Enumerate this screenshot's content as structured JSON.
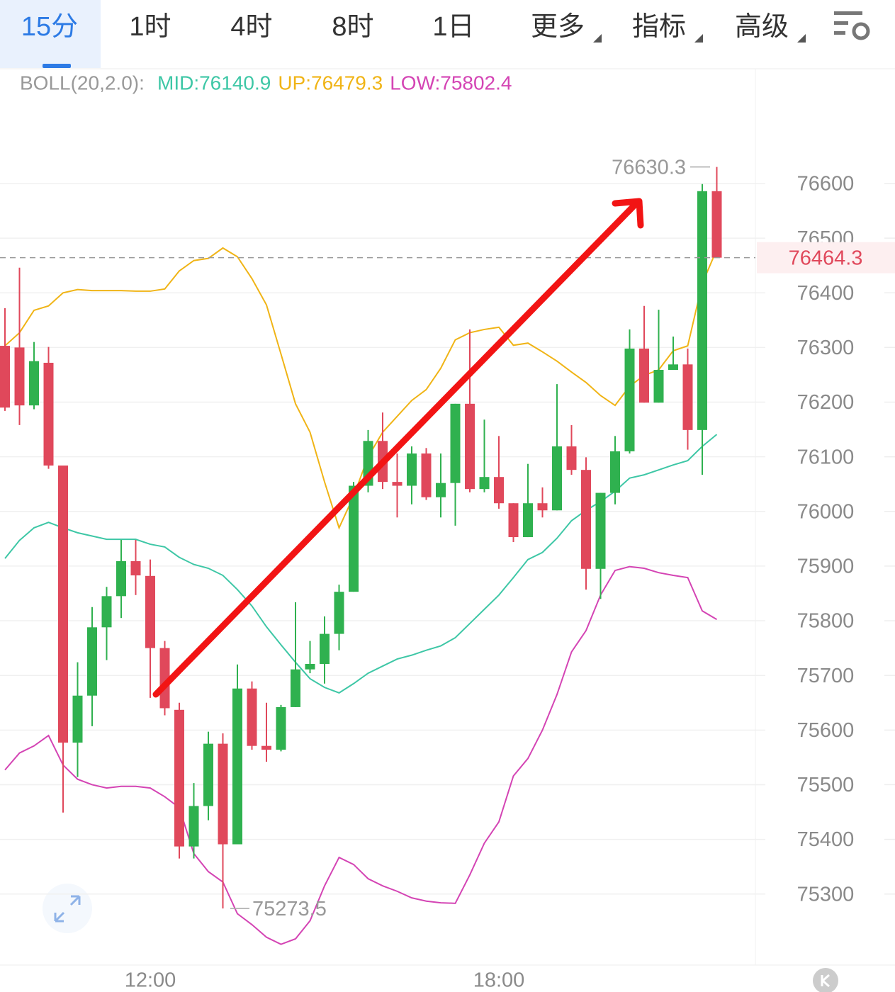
{
  "tabs": [
    "15分",
    "1时",
    "4时",
    "8时",
    "1日",
    "更多",
    "指标",
    "高级"
  ],
  "chart_data": {
    "type": "candlestick",
    "indicator": "BOLL(20,2.0):",
    "categories": [
      null,
      null,
      null,
      null,
      null,
      null,
      null,
      null,
      null,
      null,
      "12:00",
      null,
      null,
      null,
      null,
      null,
      null,
      null,
      null,
      null,
      null,
      null,
      null,
      null,
      null,
      null,
      null,
      null,
      null,
      null,
      null,
      null,
      null,
      null,
      "18:00",
      null,
      null,
      null,
      null,
      null,
      null,
      null,
      null,
      null,
      null,
      null,
      null,
      null,
      null,
      null
    ],
    "open": [
      76303,
      76300,
      76194,
      76272,
      76084,
      75577,
      75663,
      75788,
      75845,
      75909,
      75882,
      75750,
      75637,
      75387,
      75461,
      75575,
      75391,
      75676,
      75571,
      75564,
      75642,
      75711,
      75721,
      75776,
      75853,
      76047,
      76129,
      76054,
      76047,
      76106,
      76026,
      76052,
      76197,
      76041,
      76063,
      76015,
      75953,
      76015,
      76002,
      76119,
      76076,
      75895,
      76034,
      76110,
      76298,
      76199,
      76259,
      76269,
      76149,
      76586
    ],
    "high": [
      76372,
      76446,
      76310,
      76301,
      76084,
      75724,
      75825,
      75862,
      75948,
      75948,
      75912,
      75763,
      75650,
      75503,
      75597,
      75594,
      75720,
      75689,
      75650,
      75646,
      75834,
      75763,
      75808,
      75866,
      76054,
      76149,
      76181,
      76106,
      76119,
      76116,
      76106,
      76197,
      76333,
      76168,
      76138,
      76015,
      76087,
      76044,
      76233,
      76158,
      76099,
      76034,
      76138,
      76333,
      76376,
      76369,
      76320,
      76298,
      76599,
      76630.3
    ],
    "low": [
      76184,
      76158,
      76187,
      76078,
      75449,
      75514,
      75607,
      75728,
      75805,
      75847,
      75659,
      75627,
      75365,
      75365,
      75435,
      75273.5,
      75391,
      75564,
      75542,
      75561,
      75642,
      75704,
      75685,
      75746,
      75853,
      76035,
      76041,
      75989,
      76013,
      76021,
      75989,
      75974,
      76035,
      76035,
      76005,
      75944,
      75953,
      75989,
      76002,
      76067,
      75857,
      75840,
      76013,
      76106,
      76199,
      76199,
      76259,
      76113,
      76067,
      76464.3
    ],
    "close": [
      76190,
      76194,
      76275,
      76084,
      75577,
      75663,
      75788,
      75845,
      75909,
      75883,
      75750,
      75640,
      75387,
      75461,
      75575,
      75391,
      75676,
      75571,
      75564,
      75642,
      75711,
      75721,
      75776,
      75853,
      76047,
      76129,
      76054,
      76047,
      76106,
      76026,
      76052,
      76197,
      76041,
      76063,
      76015,
      75953,
      76015,
      76002,
      76119,
      76076,
      75895,
      76034,
      76110,
      76298,
      76199,
      76259,
      76269,
      76149,
      76586,
      76464.3
    ],
    "up_color": "#2fb14f",
    "down_color": "#e0485b",
    "lines": [
      {
        "legend": "MID:76140.9",
        "color": "#3ec7a6",
        "values": [
          75914,
          75947,
          75970,
          75980,
          75970,
          75961,
          75955,
          75949,
          75949,
          75949,
          75940,
          75935,
          75916,
          75903,
          75896,
          75883,
          75857,
          75827,
          75789,
          75756,
          75724,
          75694,
          75678,
          75668,
          75685,
          75704,
          75717,
          75730,
          75737,
          75746,
          75754,
          75769,
          75795,
          75821,
          75847,
          75879,
          75912,
          75925,
          75951,
          75983,
          76002,
          76018,
          76037,
          76061,
          76067,
          76076,
          76085,
          76093,
          76119,
          76140.9
        ]
      },
      {
        "legend": "UP:76479.3",
        "color": "#f0b416",
        "values": [
          76303,
          76327,
          76368,
          76376,
          76400,
          76406,
          76404,
          76404,
          76404,
          76403,
          76403,
          76407,
          76440,
          76459,
          76463,
          76482,
          76466,
          76426,
          76378,
          76288,
          76197,
          76145,
          76054,
          75970,
          76028,
          76100,
          76145,
          76174,
          76203,
          76223,
          76262,
          76314,
          76327,
          76333,
          76337,
          76304,
          76308,
          76292,
          76275,
          76255,
          76236,
          76212,
          76194,
          76229,
          76249,
          76259,
          76294,
          76303,
          76417,
          76479.3
        ]
      },
      {
        "legend": "LOW:75802.4",
        "color": "#d444b4",
        "values": [
          75527,
          75558,
          75571,
          75590,
          75536,
          75510,
          75500,
          75494,
          75497,
          75497,
          75494,
          75478,
          75458,
          75374,
          75341,
          75322,
          75264,
          75244,
          75221,
          75208,
          75218,
          75251,
          75315,
          75367,
          75354,
          75328,
          75315,
          75305,
          75293,
          75287,
          75284,
          75283,
          75335,
          75393,
          75432,
          75516,
          75548,
          75600,
          75665,
          75743,
          75782,
          75847,
          75892,
          75899,
          75896,
          75888,
          75883,
          75879,
          75818,
          75802.4
        ]
      }
    ],
    "ylim": [
      75170,
      76810
    ],
    "yticks": [
      75300,
      75400,
      75500,
      75600,
      75700,
      75800,
      75900,
      76000,
      76100,
      76200,
      76300,
      76400,
      76500,
      76600
    ],
    "grid": true,
    "current_price": 76464.3,
    "high_marker": 76630.3,
    "low_marker": 75273.5
  }
}
